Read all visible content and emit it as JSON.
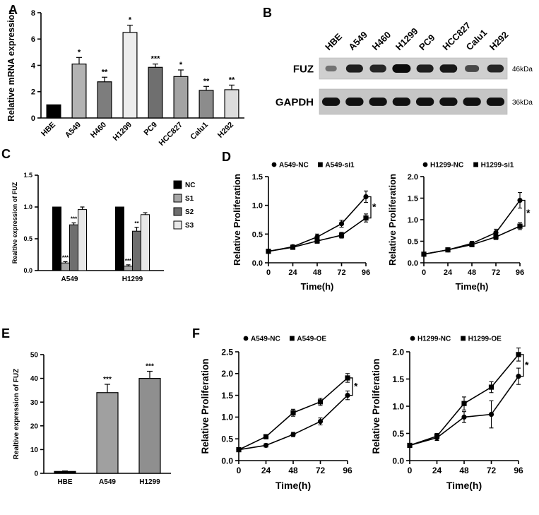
{
  "panels": {
    "A": {
      "label": "A"
    },
    "B": {
      "label": "B"
    },
    "C": {
      "label": "C"
    },
    "D": {
      "label": "D"
    },
    "E": {
      "label": "E"
    },
    "F": {
      "label": "F"
    }
  },
  "western_blot": {
    "panel": "B",
    "lanes": [
      "HBE",
      "A549",
      "H460",
      "H1299",
      "PC9",
      "HCC827",
      "Calu1",
      "H292"
    ],
    "rows": [
      {
        "label": "FUZ",
        "size_label": "46kDa",
        "band_intensities": [
          0.25,
          0.85,
          0.8,
          1.0,
          0.85,
          0.9,
          0.55,
          0.8
        ]
      },
      {
        "label": "GAPDH",
        "size_label": "36kDa",
        "band_intensities": [
          0.95,
          0.95,
          0.95,
          0.95,
          0.95,
          0.95,
          0.95,
          0.95
        ]
      }
    ]
  },
  "chart_data": [
    {
      "id": "panelA",
      "type": "bar",
      "ylabel": "Relative mRNA expression",
      "categories": [
        "HBE",
        "A549",
        "H460",
        "H1299",
        "PC9",
        "HCC827",
        "Calu1",
        "H292"
      ],
      "values": [
        1.0,
        4.1,
        2.75,
        6.5,
        3.85,
        3.15,
        2.1,
        2.15
      ],
      "errors": [
        0,
        0.5,
        0.35,
        0.55,
        0.25,
        0.5,
        0.3,
        0.35
      ],
      "sig": [
        "",
        "*",
        "**",
        "*",
        "***",
        "*",
        "**",
        "**"
      ],
      "bar_colors": [
        "#000000",
        "#b3b3b3",
        "#7d7d7d",
        "#ededed",
        "#6f6f6f",
        "#a3a3a3",
        "#8c8c8c",
        "#dcdcdc"
      ],
      "ylim": [
        0,
        8
      ],
      "yticks": [
        "0",
        "2",
        "4",
        "6",
        "8"
      ]
    },
    {
      "id": "panelC",
      "type": "grouped_bar",
      "ylabel": "Realtive expression of FUZ",
      "categories": [
        "A549",
        "H1299"
      ],
      "series": [
        {
          "name": "NC",
          "color": "#000000",
          "values": [
            1.0,
            1.0
          ],
          "errors": [
            0,
            0
          ],
          "sig": [
            "",
            ""
          ]
        },
        {
          "name": "S1",
          "color": "#a6a6a6",
          "values": [
            0.12,
            0.07
          ],
          "errors": [
            0.02,
            0.02
          ],
          "sig": [
            "***",
            "***"
          ]
        },
        {
          "name": "S2",
          "color": "#6e6e6e",
          "values": [
            0.72,
            0.62
          ],
          "errors": [
            0.03,
            0.06
          ],
          "sig": [
            "***",
            "**"
          ]
        },
        {
          "name": "S3",
          "color": "#e8e8e8",
          "values": [
            0.96,
            0.88
          ],
          "errors": [
            0.04,
            0.03
          ],
          "sig": [
            "",
            ""
          ]
        }
      ],
      "ylim": [
        0,
        1.5
      ],
      "yticks": [
        "0.0",
        "0.5",
        "1.0",
        "1.5"
      ],
      "legend_position": "right"
    },
    {
      "id": "panelD1",
      "type": "line",
      "ylabel": "Relative Proliferation",
      "xlabel": "Time(h)",
      "x": [
        0,
        24,
        48,
        72,
        96
      ],
      "series": [
        {
          "name": "A549-NC",
          "marker": "circle",
          "values": [
            0.2,
            0.28,
            0.45,
            0.68,
            1.15
          ],
          "errors": [
            0.02,
            0.03,
            0.05,
            0.06,
            0.1
          ]
        },
        {
          "name": "A549-si1",
          "marker": "square",
          "values": [
            0.2,
            0.27,
            0.38,
            0.48,
            0.78
          ],
          "errors": [
            0.02,
            0.03,
            0.04,
            0.05,
            0.07
          ]
        }
      ],
      "ylim": [
        0,
        1.5
      ],
      "yticks": [
        "0.0",
        "0.5",
        "1.0",
        "1.5"
      ],
      "significance": "*"
    },
    {
      "id": "panelD2",
      "type": "line",
      "ylabel": "Relative Proliferation",
      "xlabel": "Time(h)",
      "x": [
        0,
        24,
        48,
        72,
        96
      ],
      "series": [
        {
          "name": "H1299-NC",
          "marker": "circle",
          "values": [
            0.2,
            0.3,
            0.45,
            0.7,
            1.45
          ],
          "errors": [
            0.02,
            0.03,
            0.05,
            0.08,
            0.18
          ]
        },
        {
          "name": "H1299-si1",
          "marker": "square",
          "values": [
            0.2,
            0.3,
            0.42,
            0.6,
            0.85
          ],
          "errors": [
            0.02,
            0.03,
            0.04,
            0.06,
            0.08
          ]
        }
      ],
      "ylim": [
        0,
        2.0
      ],
      "yticks": [
        "0.0",
        "0.5",
        "1.0",
        "1.5",
        "2.0"
      ],
      "significance": "*"
    },
    {
      "id": "panelE",
      "type": "bar",
      "ylabel": "Realtive expression of FUZ",
      "categories": [
        "HBE",
        "A549",
        "H1299"
      ],
      "values": [
        0.8,
        34,
        40
      ],
      "errors": [
        0.2,
        3.5,
        3
      ],
      "sig": [
        "",
        "***",
        "***"
      ],
      "bar_colors": [
        "#000000",
        "#a0a0a0",
        "#8f8f8f"
      ],
      "ylim": [
        0,
        50
      ],
      "yticks": [
        "0",
        "10",
        "20",
        "30",
        "40",
        "50"
      ]
    },
    {
      "id": "panelF1",
      "type": "line",
      "ylabel": "Relative Proliferation",
      "xlabel": "Time(h)",
      "x": [
        0,
        24,
        48,
        72,
        96
      ],
      "series": [
        {
          "name": "A549-NC",
          "marker": "circle",
          "values": [
            0.25,
            0.35,
            0.6,
            0.9,
            1.5
          ],
          "errors": [
            0.03,
            0.04,
            0.05,
            0.08,
            0.1
          ]
        },
        {
          "name": "A549-OE",
          "marker": "square",
          "values": [
            0.25,
            0.55,
            1.1,
            1.35,
            1.9
          ],
          "errors": [
            0.03,
            0.05,
            0.08,
            0.08,
            0.1
          ]
        }
      ],
      "ylim": [
        0,
        2.5
      ],
      "yticks": [
        "0.0",
        "0.5",
        "1.0",
        "1.5",
        "2.0",
        "2.5"
      ],
      "significance": "*"
    },
    {
      "id": "panelF2",
      "type": "line",
      "ylabel": "Relative Proliferation",
      "xlabel": "Time(h)",
      "x": [
        0,
        24,
        48,
        72,
        96
      ],
      "series": [
        {
          "name": "H1299-NC",
          "marker": "circle",
          "values": [
            0.28,
            0.42,
            0.8,
            0.85,
            1.55
          ],
          "errors": [
            0.03,
            0.05,
            0.1,
            0.25,
            0.15
          ]
        },
        {
          "name": "H1299-OE",
          "marker": "square",
          "values": [
            0.28,
            0.45,
            1.05,
            1.35,
            1.95
          ],
          "errors": [
            0.03,
            0.05,
            0.12,
            0.1,
            0.12
          ]
        }
      ],
      "ylim": [
        0,
        2.0
      ],
      "yticks": [
        "0.0",
        "0.5",
        "1.0",
        "1.5",
        "2.0"
      ],
      "significance": "*"
    }
  ]
}
